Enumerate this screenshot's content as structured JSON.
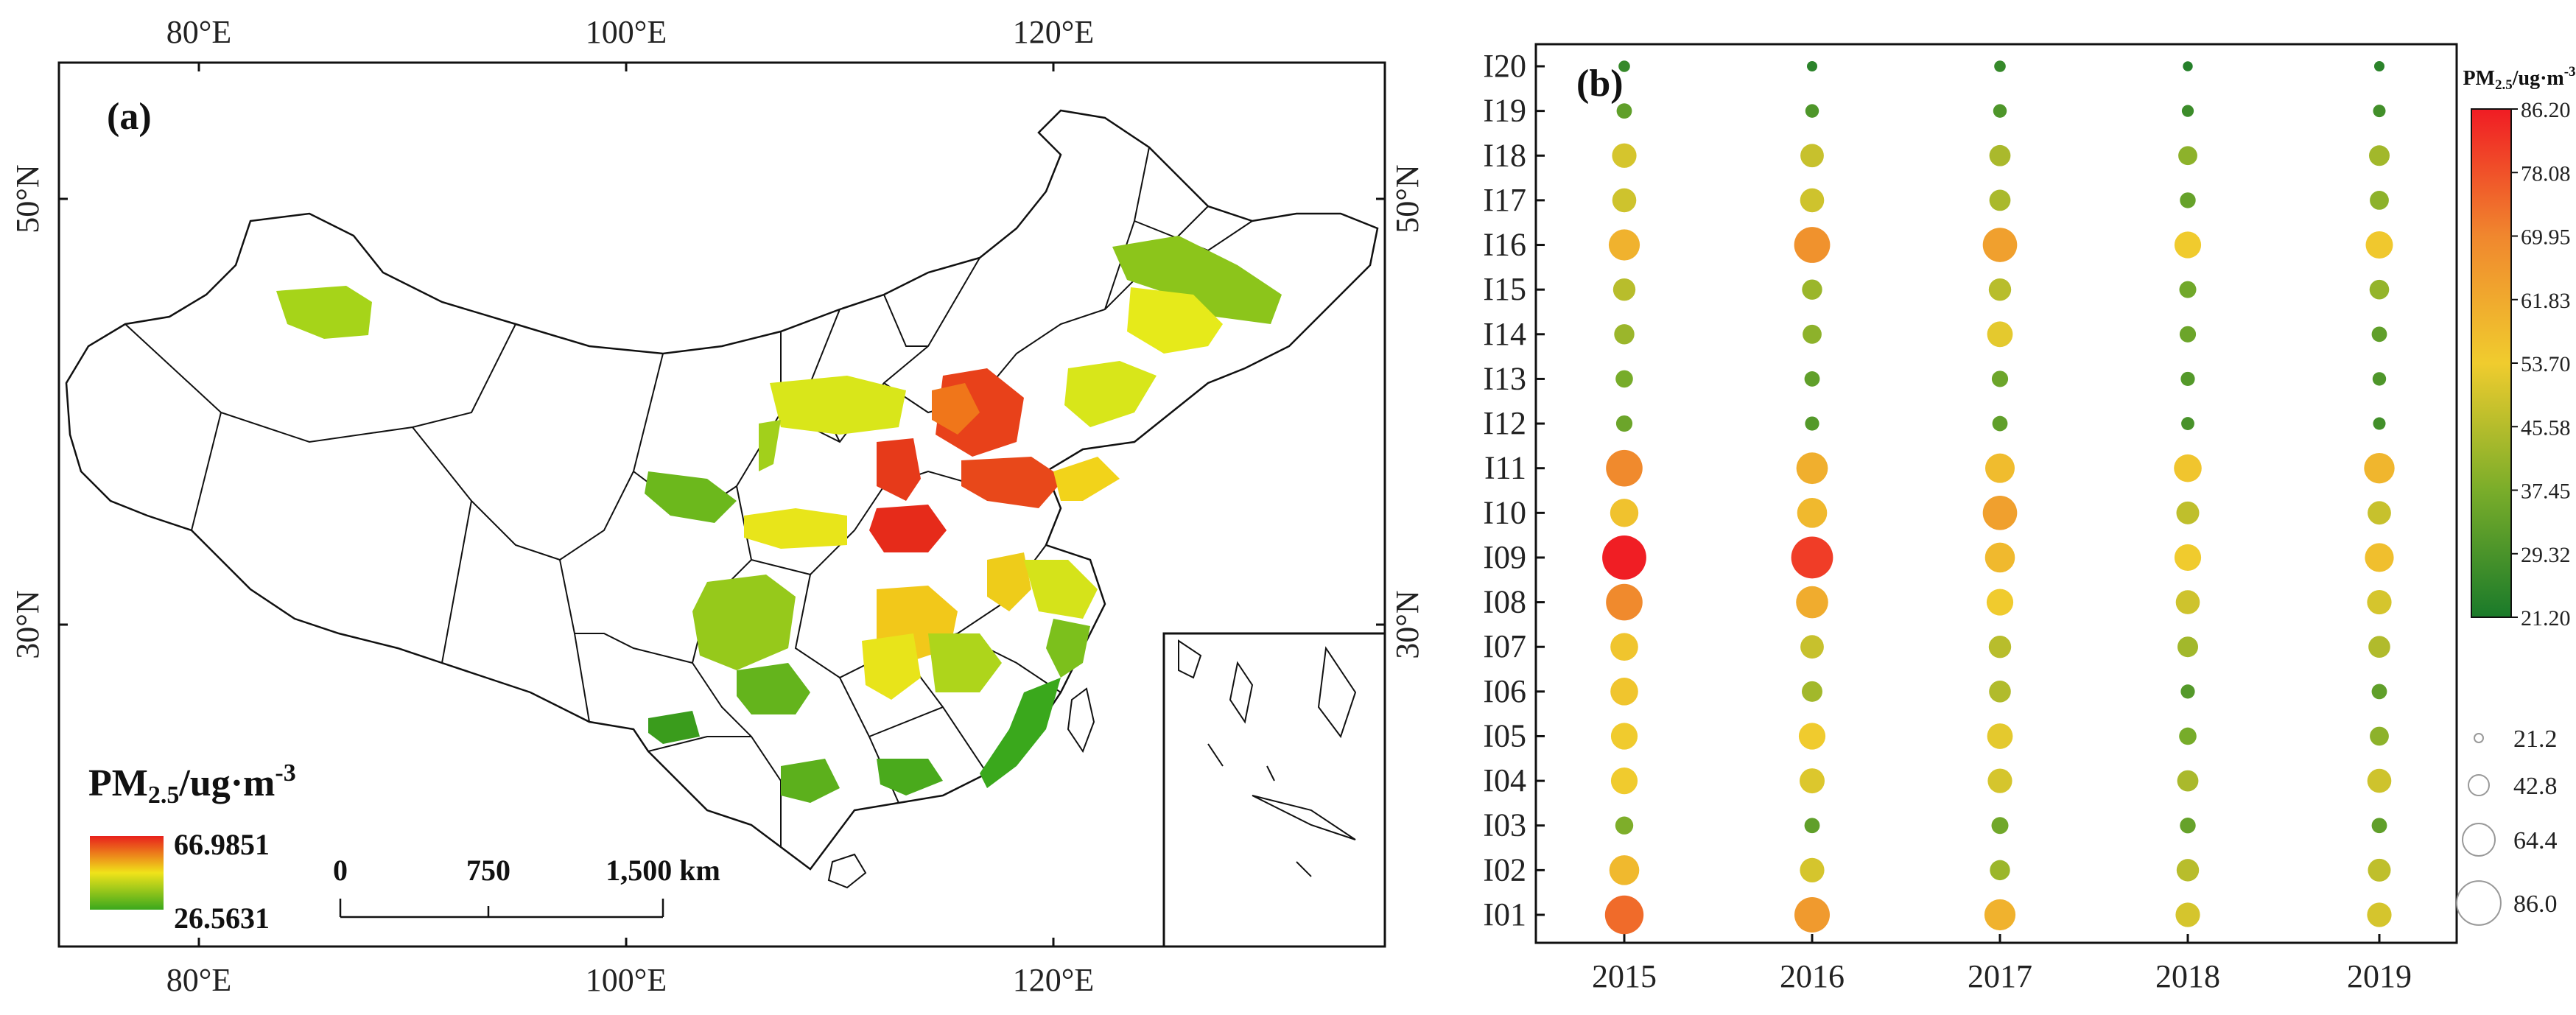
{
  "panel_a": {
    "label": "(a)",
    "top_ticks": [
      "80°E",
      "100°E",
      "120°E"
    ],
    "bottom_ticks": [
      "80°E",
      "100°E",
      "120°E"
    ],
    "left_ticks": [
      "50°N",
      "30°N"
    ],
    "right_ticks": [
      "50°N",
      "30°N"
    ],
    "legend_title_prefix": "PM",
    "legend_title_sub": "2.5",
    "legend_title_suffix": "/ug·m",
    "legend_title_sup": "-3",
    "legend_max": "66.9851",
    "legend_min": "26.5631",
    "scale_labels": [
      "0",
      "750",
      "1,500 km"
    ],
    "colors": {
      "high": "#e8201c",
      "mid": "#f0e31a",
      "low": "#3aa81c"
    }
  },
  "chart_data": {
    "type": "scatter",
    "title": "(b)",
    "xlabel": "",
    "ylabel": "",
    "x": [
      "2015",
      "2016",
      "2017",
      "2018",
      "2019"
    ],
    "categories": [
      "I01",
      "I02",
      "I03",
      "I04",
      "I05",
      "I06",
      "I07",
      "I08",
      "I09",
      "I10",
      "I11",
      "I12",
      "I13",
      "I14",
      "I15",
      "I16",
      "I17",
      "I18",
      "I19",
      "I20"
    ],
    "values": {
      "I01": [
        76,
        70,
        62,
        50,
        50
      ],
      "I02": [
        60,
        50,
        42,
        46,
        47
      ],
      "I03": [
        38,
        33,
        36,
        34,
        33
      ],
      "I04": [
        54,
        51,
        50,
        44,
        49
      ],
      "I05": [
        54,
        54,
        52,
        37,
        40
      ],
      "I06": [
        56,
        43,
        45,
        31,
        33
      ],
      "I07": [
        56,
        48,
        46,
        43,
        45
      ],
      "I08": [
        72,
        64,
        54,
        49,
        50
      ],
      "I09": [
        86,
        82,
        60,
        54,
        58
      ],
      "I10": [
        57,
        60,
        68,
        47,
        48
      ],
      "I11": [
        72,
        63,
        59,
        56,
        61
      ],
      "I12": [
        35,
        31,
        33,
        29,
        28
      ],
      "I13": [
        37,
        33,
        35,
        31,
        30
      ],
      "I14": [
        42,
        40,
        52,
        35,
        33
      ],
      "I15": [
        46,
        42,
        46,
        36,
        41
      ],
      "I16": [
        62,
        71,
        68,
        54,
        55
      ],
      "I17": [
        49,
        49,
        44,
        34,
        40
      ],
      "I18": [
        50,
        48,
        44,
        40,
        43
      ],
      "I19": [
        33,
        30,
        30,
        27,
        28
      ],
      "I20": [
        26,
        24,
        26,
        23,
        24
      ]
    },
    "colorbar": {
      "title_prefix": "PM",
      "title_sub": "2.5",
      "title_suffix": "/ug·m",
      "title_sup": "-3",
      "ticks": [
        "86.20",
        "78.08",
        "69.95",
        "61.83",
        "53.70",
        "45.58",
        "37.45",
        "29.32",
        "21.20"
      ],
      "min": 21.2,
      "max": 86.2,
      "colors": [
        "#1a7a2a",
        "#7aad2a",
        "#f0cc2e",
        "#f09a2e",
        "#f01c24"
      ]
    },
    "size_legend": {
      "labels": [
        "21.2",
        "42.8",
        "64.4",
        "86.0"
      ],
      "values": [
        21.2,
        42.8,
        64.4,
        86.0
      ]
    },
    "size_range": [
      21.2,
      86.2
    ]
  }
}
